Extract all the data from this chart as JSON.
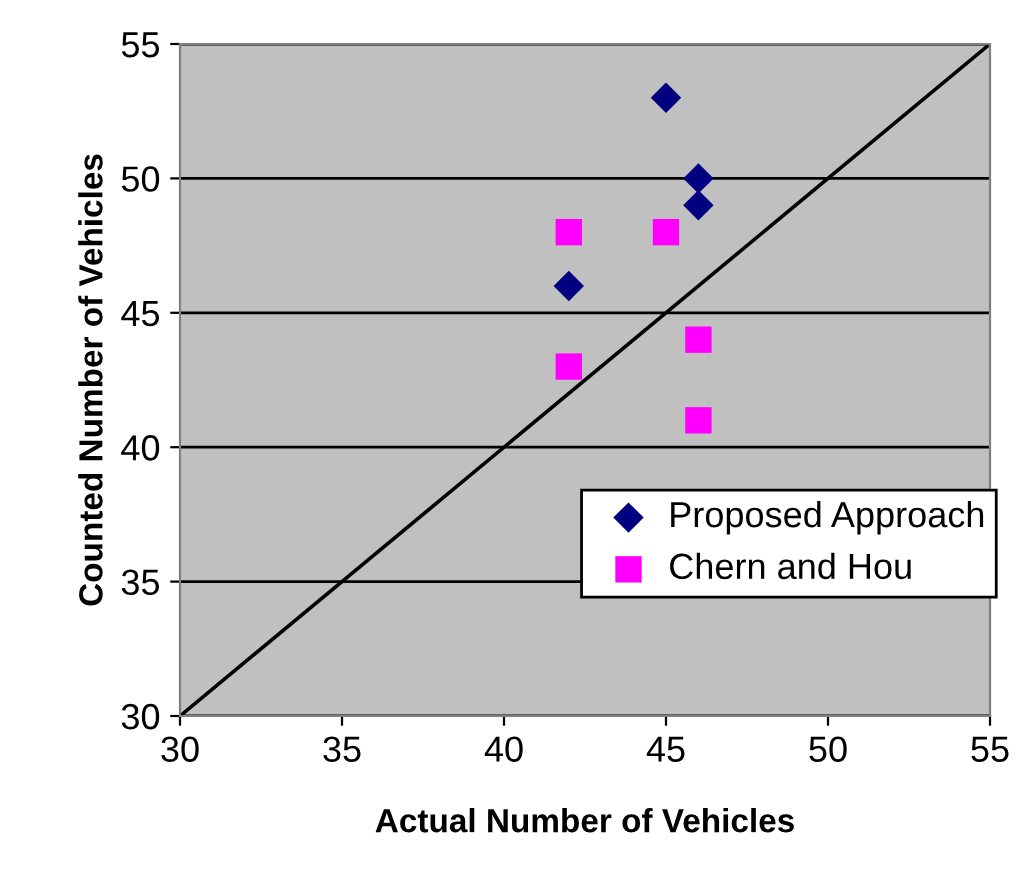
{
  "chart_data": {
    "type": "scatter",
    "xlabel": "Actual Number of Vehicles",
    "ylabel": "Counted Number of Vehicles",
    "xlim": [
      30,
      55
    ],
    "ylim": [
      30,
      55
    ],
    "xticks": [
      30,
      35,
      40,
      45,
      50,
      55
    ],
    "yticks": [
      30,
      35,
      40,
      45,
      50,
      55
    ],
    "grid": "y",
    "legend": "bottom right",
    "series": [
      {
        "name": "Proposed Approach",
        "color": "#000080",
        "marker": "diamond",
        "x": [
          42,
          45,
          46,
          46
        ],
        "values": [
          46,
          53,
          50,
          49
        ]
      },
      {
        "name": "Chern and Hou",
        "color": "#ff00ff",
        "marker": "square",
        "x": [
          42,
          45,
          42,
          46,
          46
        ],
        "values": [
          48,
          48,
          43,
          44,
          41
        ]
      },
      {
        "type": "line",
        "color": "#000000",
        "marker": "none",
        "x": [
          30,
          55
        ],
        "values": [
          30,
          55
        ]
      }
    ]
  }
}
